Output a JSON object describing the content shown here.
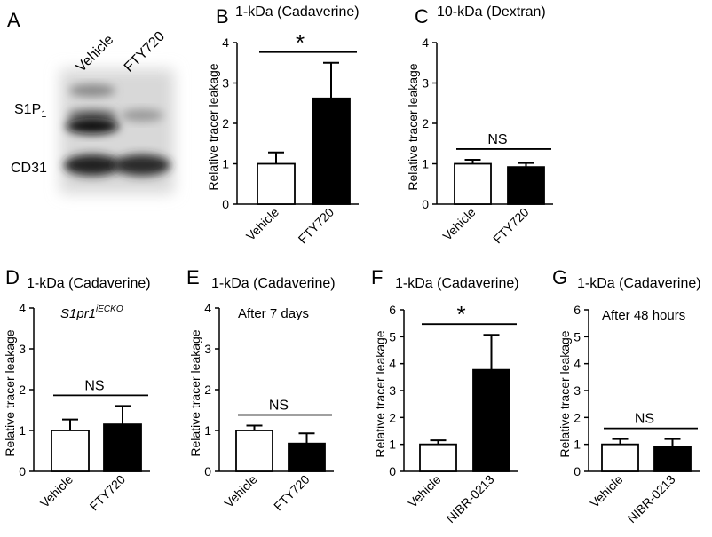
{
  "blot": {
    "panel_label": "A",
    "lanes": [
      "Vehicle",
      "FTY720"
    ],
    "rows": [
      {
        "label": "S1P",
        "subscript": "1"
      },
      {
        "label": "CD31"
      }
    ]
  },
  "chart_data": [
    {
      "type": "bar",
      "panel_label": "B",
      "title": "1-kDa (Cadaverine)",
      "ylabel": "Relative tracer leakage",
      "categories": [
        "Vehicle",
        "FTY720"
      ],
      "values": [
        1,
        2.62
      ],
      "errors": [
        0.28,
        0.88
      ],
      "colors": [
        "#ffffff",
        "#000000"
      ],
      "ylim": [
        0,
        4
      ],
      "yticks": [
        0,
        1,
        2,
        3,
        4
      ],
      "annotation": "*"
    },
    {
      "type": "bar",
      "panel_label": "C",
      "title": "10-kDa (Dextran)",
      "ylabel": "Relative tracer leakage",
      "categories": [
        "Vehicle",
        "FTY720"
      ],
      "values": [
        1,
        0.92
      ],
      "errors": [
        0.1,
        0.1
      ],
      "colors": [
        "#ffffff",
        "#000000"
      ],
      "ylim": [
        0,
        4
      ],
      "yticks": [
        0,
        1,
        2,
        3,
        4
      ],
      "annotation": "NS"
    },
    {
      "type": "bar",
      "panel_label": "D",
      "title": "1-kDa (Cadaverine)",
      "subtitle": "S1pr1",
      "subtitle_superscript": "iECKO",
      "ylabel": "Relative tracer leakage",
      "categories": [
        "Vehicle",
        "FTY720"
      ],
      "values": [
        1,
        1.15
      ],
      "errors": [
        0.27,
        0.45
      ],
      "colors": [
        "#ffffff",
        "#000000"
      ],
      "ylim": [
        0,
        4
      ],
      "yticks": [
        0,
        1,
        2,
        3,
        4
      ],
      "annotation": "NS"
    },
    {
      "type": "bar",
      "panel_label": "E",
      "title": "1-kDa (Cadaverine)",
      "subtitle": "After 7 days",
      "ylabel": "Relative tracer leakage",
      "categories": [
        "Vehicle",
        "FTY720"
      ],
      "values": [
        1,
        0.68
      ],
      "errors": [
        0.12,
        0.25
      ],
      "colors": [
        "#ffffff",
        "#000000"
      ],
      "ylim": [
        0,
        4
      ],
      "yticks": [
        0,
        1,
        2,
        3,
        4
      ],
      "annotation": "NS"
    },
    {
      "type": "bar",
      "panel_label": "F",
      "title": "1-kDa (Cadaverine)",
      "ylabel": "Relative tracer leakage",
      "categories": [
        "Vehicle",
        "NIBR-0213"
      ],
      "values": [
        1,
        3.77
      ],
      "errors": [
        0.15,
        1.3
      ],
      "colors": [
        "#ffffff",
        "#000000"
      ],
      "ylim": [
        0,
        6
      ],
      "yticks": [
        0,
        1,
        2,
        3,
        4,
        5,
        6
      ],
      "annotation": "*"
    },
    {
      "type": "bar",
      "panel_label": "G",
      "title": "1-kDa (Cadaverine)",
      "subtitle": "After 48 hours",
      "ylabel": "Relative tracer leakage",
      "categories": [
        "Vehicle",
        "NIBR-0213"
      ],
      "values": [
        1,
        0.92
      ],
      "errors": [
        0.2,
        0.28
      ],
      "colors": [
        "#ffffff",
        "#000000"
      ],
      "ylim": [
        0,
        6
      ],
      "yticks": [
        0,
        1,
        2,
        3,
        4,
        5,
        6
      ],
      "annotation": "NS"
    }
  ]
}
